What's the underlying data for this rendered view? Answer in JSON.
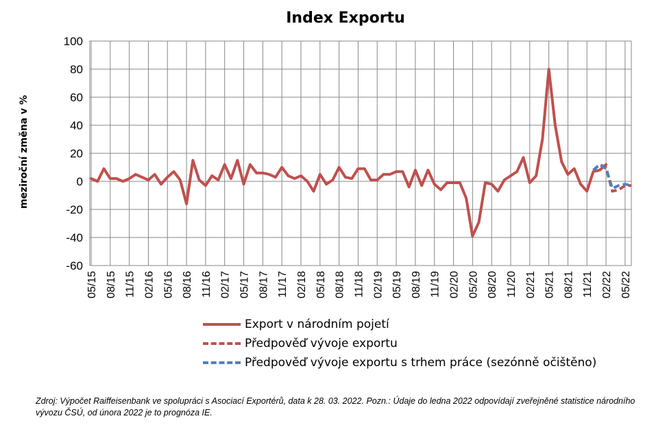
{
  "chart_data": {
    "type": "line",
    "title": "Index Exportu",
    "ylabel": "meziroční změna v %",
    "xlabel": "",
    "ylim": [
      -60,
      100
    ],
    "yticks": [
      100,
      80,
      60,
      40,
      20,
      0,
      -20,
      -40,
      -60
    ],
    "grid": true,
    "legend_position": "bottom",
    "x_tick_labels": [
      "05/15",
      "08/15",
      "11/15",
      "02/16",
      "05/16",
      "08/16",
      "11/16",
      "02/17",
      "05/17",
      "08/17",
      "11/17",
      "02/18",
      "05/18",
      "08/18",
      "11/18",
      "02/19",
      "05/19",
      "08/19",
      "11/19",
      "02/20",
      "05/20",
      "08/20",
      "11/20",
      "02/21",
      "05/21",
      "08/21",
      "11/21",
      "02/22",
      "05/22"
    ],
    "series": [
      {
        "name": "Export v národním pojetí",
        "color": "#c0504d",
        "style": "solid",
        "start": "05/15",
        "values": [
          2,
          0,
          9,
          2,
          2,
          0,
          2,
          5,
          3,
          1,
          5,
          -2,
          3,
          7,
          1,
          -16,
          15,
          1,
          -3,
          4,
          1,
          12,
          2,
          15,
          -2,
          12,
          6,
          6,
          5,
          3,
          10,
          4,
          2,
          4,
          0,
          -7,
          5,
          -2,
          1,
          10,
          3,
          2,
          9,
          9,
          1,
          1,
          5,
          5,
          7,
          7,
          -4,
          8,
          -3,
          8,
          -2,
          -6,
          -1,
          -1,
          -1,
          -12,
          -39,
          -29,
          -1,
          -2,
          -7,
          1,
          4,
          7,
          17,
          -1,
          4,
          30,
          80,
          40,
          14,
          5,
          9,
          -2,
          -7,
          7,
          8,
          12
        ]
      },
      {
        "name": "Předpověď vývoje exportu",
        "color": "#c0504d",
        "style": "dashed",
        "start": "12/21",
        "values": [
          8,
          12,
          10,
          -7,
          -6,
          -3,
          -3
        ]
      },
      {
        "name": "Předpověď vývoje exportu s trhem práce (sezónně očištěno)",
        "color": "#4f81bd",
        "style": "dashed",
        "start": "12/21",
        "values": [
          8,
          12,
          9,
          -5,
          -3,
          -2,
          -3
        ]
      }
    ]
  },
  "source_note": "Zdroj: Výpočet Raiffeisenbank ve spolupráci s Asociací Exportérů, data k 28. 03. 2022. Pozn.: Údaje do ledna 2022 odpovídají zveřejněné statistice národního vývozu ČSÚ, od února 2022 je to prognóza IE."
}
